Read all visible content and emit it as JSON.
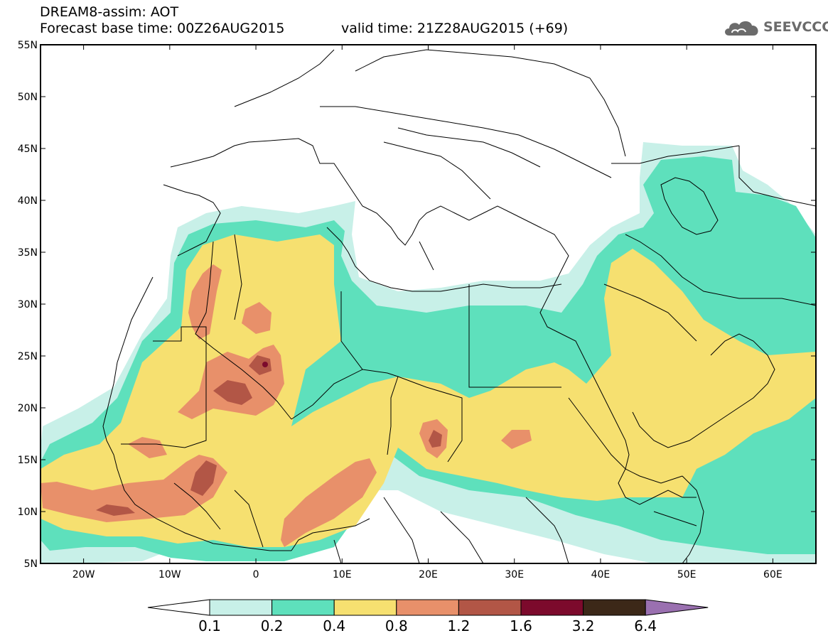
{
  "header": {
    "title_line1": "DREAM8-assim: AOT",
    "title_line2": "Forecast base time: 00Z26AUG2015",
    "valid_time": "valid time: 21Z28AUG2015 (+69)",
    "logo_text": "SEEVCCC"
  },
  "map": {
    "lat_labels": [
      "55N",
      "50N",
      "45N",
      "40N",
      "35N",
      "30N",
      "25N",
      "20N",
      "15N",
      "10N",
      "5N"
    ],
    "lon_labels": [
      "20W",
      "10W",
      "0",
      "10E",
      "20E",
      "30E",
      "40E",
      "50E",
      "60E"
    ],
    "lon_range": [
      -25,
      65
    ],
    "lat_range": [
      5,
      55
    ]
  },
  "legend": {
    "levels": [
      "0.1",
      "0.2",
      "0.4",
      "0.8",
      "1.2",
      "1.6",
      "3.2",
      "6.4"
    ],
    "colors": [
      "#c8f0e8",
      "#5ee0bc",
      "#f6e070",
      "#e8906a",
      "#b25646",
      "#7c0a2c",
      "#3c2818"
    ],
    "low_color": "#ffffff",
    "high_color": "#9a70b0"
  },
  "palette": {
    "c1": "#c8f0e8",
    "c2": "#5ee0bc",
    "c3": "#f6e070",
    "c4": "#e8906a",
    "c5": "#b25646",
    "c6": "#7c0a2c"
  }
}
